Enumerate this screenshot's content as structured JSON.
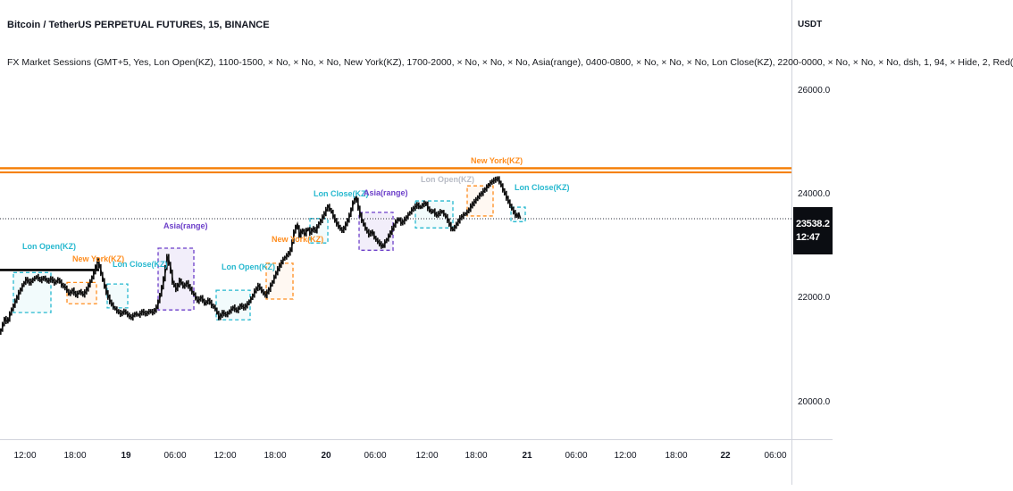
{
  "header": {
    "title": "Bitcoin / TetherUS PERPETUAL FUTURES, 15, BINANCE",
    "indicator_line": "FX Market Sessions (GMT+5, Yes, Lon Open(KZ), 1100-1500, × No, × No, × No, New York(KZ), 1700-2000, × No, × No, × No, Asia(range), 0400-0800, × No, × No, × No, Lon Close(KZ), 2200-0000, × No, × No, × No, dsh, 1, 94, × Hide, 2, Red("
  },
  "price_axis": {
    "currency": "USDT",
    "ticks": [
      {
        "price": 26000,
        "label": "26000.0"
      },
      {
        "price": 24000,
        "label": "24000.0"
      },
      {
        "price": 22000,
        "label": "22000.0"
      },
      {
        "price": 20000,
        "label": "20000.0"
      }
    ],
    "last_price": "23538.2",
    "last_price_value": 23538.2,
    "countdown": "12:47"
  },
  "time_axis": {
    "ticks": [
      {
        "x": 28,
        "label": "12:00",
        "bold": false
      },
      {
        "x": 84,
        "label": "18:00",
        "bold": false
      },
      {
        "x": 141,
        "label": "19",
        "bold": true
      },
      {
        "x": 196,
        "label": "06:00",
        "bold": false
      },
      {
        "x": 252,
        "label": "12:00",
        "bold": false
      },
      {
        "x": 308,
        "label": "18:00",
        "bold": false
      },
      {
        "x": 365,
        "label": "20",
        "bold": true
      },
      {
        "x": 420,
        "label": "06:00",
        "bold": false
      },
      {
        "x": 478,
        "label": "12:00",
        "bold": false
      },
      {
        "x": 533,
        "label": "18:00",
        "bold": false
      },
      {
        "x": 590,
        "label": "21",
        "bold": true
      },
      {
        "x": 645,
        "label": "06:00",
        "bold": false
      },
      {
        "x": 700,
        "label": "12:00",
        "bold": false
      },
      {
        "x": 757,
        "label": "18:00",
        "bold": false
      },
      {
        "x": 812,
        "label": "22",
        "bold": true
      },
      {
        "x": 868,
        "label": "06:00",
        "bold": false
      }
    ]
  },
  "colors": {
    "cyan": "#26b8cf",
    "orange": "#ff8d1e",
    "purple": "#6c3fc9",
    "gray_label": "#b8bcc6",
    "session_line_orange": "#f57c00",
    "candle": "#111111",
    "separator": "#d1d4dc",
    "last_price_line": "#2a2e39",
    "badge_bg": "#0b0d12"
  },
  "chart_data": {
    "type": "candlestick",
    "title": "Bitcoin / TetherUS Perpetual Futures 15-minute chart with FX Market Sessions overlay",
    "visible_days": [
      "19",
      "20",
      "21",
      "22"
    ],
    "ylim": [
      19290,
      27750
    ],
    "grid": false,
    "last_price": 23538.2,
    "levels": {
      "session_lines": [
        {
          "name": "ny-session-high-line",
          "price": 24510,
          "width": 2.4
        },
        {
          "name": "ny-session-low-line",
          "price": 24430,
          "width": 2.0
        }
      ],
      "black_line": {
        "price": 22550,
        "x1": 0,
        "x2": 111,
        "width": 2.6
      }
    },
    "sessions": [
      {
        "label": "Lon Open(KZ)",
        "color": "cyan",
        "label_color": "cyan",
        "x1": 15,
        "x2": 57,
        "high": 22500,
        "low": 21730,
        "label_x": 25,
        "label_y": 272
      },
      {
        "label": "New York(KZ)",
        "color": "orange",
        "label_color": "orange",
        "x1": 75,
        "x2": 108,
        "high": 22310,
        "low": 21900,
        "label_x": 81,
        "label_y": 286
      },
      {
        "label": "Lon Close(KZ)",
        "color": "cyan",
        "label_color": "cyan",
        "x1": 120,
        "x2": 143,
        "high": 22280,
        "low": 21820,
        "label_x": 126,
        "label_y": 292
      },
      {
        "label": "Asia(range)",
        "color": "purple",
        "label_color": "purple",
        "x1": 177,
        "x2": 217,
        "high": 22970,
        "low": 21780,
        "label_x": 183,
        "label_y": 249
      },
      {
        "label": "Lon Open(KZ)",
        "color": "cyan",
        "label_color": "cyan",
        "x1": 242,
        "x2": 280,
        "high": 22160,
        "low": 21590,
        "label_x": 248,
        "label_y": 295
      },
      {
        "label": "New York(KZ)",
        "color": "orange",
        "label_color": "orange",
        "x1": 298,
        "x2": 328,
        "high": 22680,
        "low": 21990,
        "label_x": 304,
        "label_y": 264
      },
      {
        "label": "Lon Close(KZ)",
        "color": "cyan",
        "label_color": "cyan",
        "x1": 347,
        "x2": 367,
        "high": 23540,
        "low": 23070,
        "label_x": 351,
        "label_y": 213
      },
      {
        "label": "Asia(range)",
        "color": "purple",
        "label_color": "purple",
        "x1": 402,
        "x2": 440,
        "high": 23660,
        "low": 22930,
        "label_x": 407,
        "label_y": 212
      },
      {
        "label": "Lon Open(KZ)",
        "color": "cyan",
        "label_color": "gray_label",
        "x1": 465,
        "x2": 507,
        "high": 23880,
        "low": 23360,
        "label_x": 471,
        "label_y": 197
      },
      {
        "label": "New York(KZ)",
        "color": "orange",
        "label_color": "orange",
        "x1": 523,
        "x2": 552,
        "high": 24170,
        "low": 23590,
        "label_x": 527,
        "label_y": 176
      },
      {
        "label": "Lon Close(KZ)",
        "color": "cyan",
        "label_color": "cyan",
        "x1": 572,
        "x2": 588,
        "high": 23760,
        "low": 23480,
        "label_x": 576,
        "label_y": 206
      }
    ],
    "price_path": [
      [
        0,
        21320
      ],
      [
        3,
        21450
      ],
      [
        6,
        21610
      ],
      [
        9,
        21540
      ],
      [
        12,
        21710
      ],
      [
        15,
        21830
      ],
      [
        18,
        21950
      ],
      [
        22,
        22110
      ],
      [
        26,
        22250
      ],
      [
        30,
        22370
      ],
      [
        34,
        22300
      ],
      [
        38,
        22370
      ],
      [
        42,
        22420
      ],
      [
        46,
        22350
      ],
      [
        50,
        22400
      ],
      [
        54,
        22330
      ],
      [
        58,
        22380
      ],
      [
        62,
        22300
      ],
      [
        66,
        22370
      ],
      [
        70,
        22260
      ],
      [
        74,
        22210
      ],
      [
        78,
        22090
      ],
      [
        82,
        22160
      ],
      [
        86,
        22060
      ],
      [
        90,
        22140
      ],
      [
        94,
        22070
      ],
      [
        98,
        22180
      ],
      [
        102,
        22330
      ],
      [
        106,
        22500
      ],
      [
        110,
        22740
      ],
      [
        113,
        22550
      ],
      [
        116,
        22350
      ],
      [
        120,
        22110
      ],
      [
        124,
        21940
      ],
      [
        128,
        21830
      ],
      [
        132,
        21760
      ],
      [
        136,
        21700
      ],
      [
        140,
        21760
      ],
      [
        144,
        21680
      ],
      [
        148,
        21630
      ],
      [
        152,
        21710
      ],
      [
        156,
        21680
      ],
      [
        160,
        21750
      ],
      [
        164,
        21700
      ],
      [
        168,
        21760
      ],
      [
        172,
        21730
      ],
      [
        176,
        21830
      ],
      [
        180,
        22070
      ],
      [
        184,
        22380
      ],
      [
        188,
        22810
      ],
      [
        191,
        22610
      ],
      [
        194,
        22310
      ],
      [
        198,
        22180
      ],
      [
        202,
        22350
      ],
      [
        206,
        22230
      ],
      [
        210,
        22300
      ],
      [
        214,
        22180
      ],
      [
        218,
        22070
      ],
      [
        222,
        21950
      ],
      [
        226,
        22020
      ],
      [
        230,
        21900
      ],
      [
        234,
        21970
      ],
      [
        238,
        21870
      ],
      [
        242,
        21800
      ],
      [
        246,
        21630
      ],
      [
        250,
        21730
      ],
      [
        254,
        21680
      ],
      [
        258,
        21760
      ],
      [
        262,
        21830
      ],
      [
        266,
        21760
      ],
      [
        270,
        21870
      ],
      [
        274,
        21820
      ],
      [
        278,
        21900
      ],
      [
        282,
        22000
      ],
      [
        286,
        22140
      ],
      [
        290,
        22250
      ],
      [
        294,
        22140
      ],
      [
        298,
        22060
      ],
      [
        302,
        22180
      ],
      [
        306,
        22330
      ],
      [
        310,
        22500
      ],
      [
        314,
        22640
      ],
      [
        318,
        22760
      ],
      [
        322,
        22830
      ],
      [
        326,
        22930
      ],
      [
        330,
        23280
      ],
      [
        333,
        23450
      ],
      [
        336,
        23210
      ],
      [
        339,
        23330
      ],
      [
        342,
        23240
      ],
      [
        345,
        23360
      ],
      [
        348,
        23260
      ],
      [
        351,
        23360
      ],
      [
        354,
        23300
      ],
      [
        357,
        23430
      ],
      [
        360,
        23500
      ],
      [
        364,
        23640
      ],
      [
        368,
        23780
      ],
      [
        372,
        23660
      ],
      [
        376,
        23500
      ],
      [
        380,
        23380
      ],
      [
        384,
        23300
      ],
      [
        388,
        23430
      ],
      [
        392,
        23600
      ],
      [
        396,
        23850
      ],
      [
        399,
        23970
      ],
      [
        402,
        23740
      ],
      [
        405,
        23540
      ],
      [
        408,
        23420
      ],
      [
        411,
        23310
      ],
      [
        414,
        23230
      ],
      [
        417,
        23300
      ],
      [
        420,
        23170
      ],
      [
        423,
        23110
      ],
      [
        426,
        23050
      ],
      [
        429,
        22990
      ],
      [
        432,
        23090
      ],
      [
        435,
        23170
      ],
      [
        438,
        23280
      ],
      [
        441,
        23380
      ],
      [
        444,
        23480
      ],
      [
        447,
        23550
      ],
      [
        450,
        23450
      ],
      [
        453,
        23500
      ],
      [
        456,
        23570
      ],
      [
        459,
        23640
      ],
      [
        462,
        23710
      ],
      [
        465,
        23760
      ],
      [
        468,
        23810
      ],
      [
        471,
        23740
      ],
      [
        474,
        23810
      ],
      [
        477,
        23850
      ],
      [
        480,
        23740
      ],
      [
        483,
        23660
      ],
      [
        486,
        23690
      ],
      [
        489,
        23590
      ],
      [
        492,
        23640
      ],
      [
        495,
        23690
      ],
      [
        498,
        23620
      ],
      [
        501,
        23550
      ],
      [
        504,
        23420
      ],
      [
        507,
        23310
      ],
      [
        510,
        23380
      ],
      [
        513,
        23470
      ],
      [
        516,
        23550
      ],
      [
        519,
        23600
      ],
      [
        522,
        23640
      ],
      [
        525,
        23690
      ],
      [
        528,
        23780
      ],
      [
        531,
        23850
      ],
      [
        534,
        23910
      ],
      [
        537,
        23980
      ],
      [
        540,
        24030
      ],
      [
        543,
        24090
      ],
      [
        546,
        24150
      ],
      [
        549,
        24220
      ],
      [
        552,
        24260
      ],
      [
        555,
        24290
      ],
      [
        558,
        24310
      ],
      [
        561,
        24210
      ],
      [
        564,
        24090
      ],
      [
        567,
        23980
      ],
      [
        570,
        23860
      ],
      [
        573,
        23760
      ],
      [
        576,
        23660
      ],
      [
        579,
        23570
      ],
      [
        581,
        23640
      ],
      [
        583,
        23540
      ]
    ]
  }
}
